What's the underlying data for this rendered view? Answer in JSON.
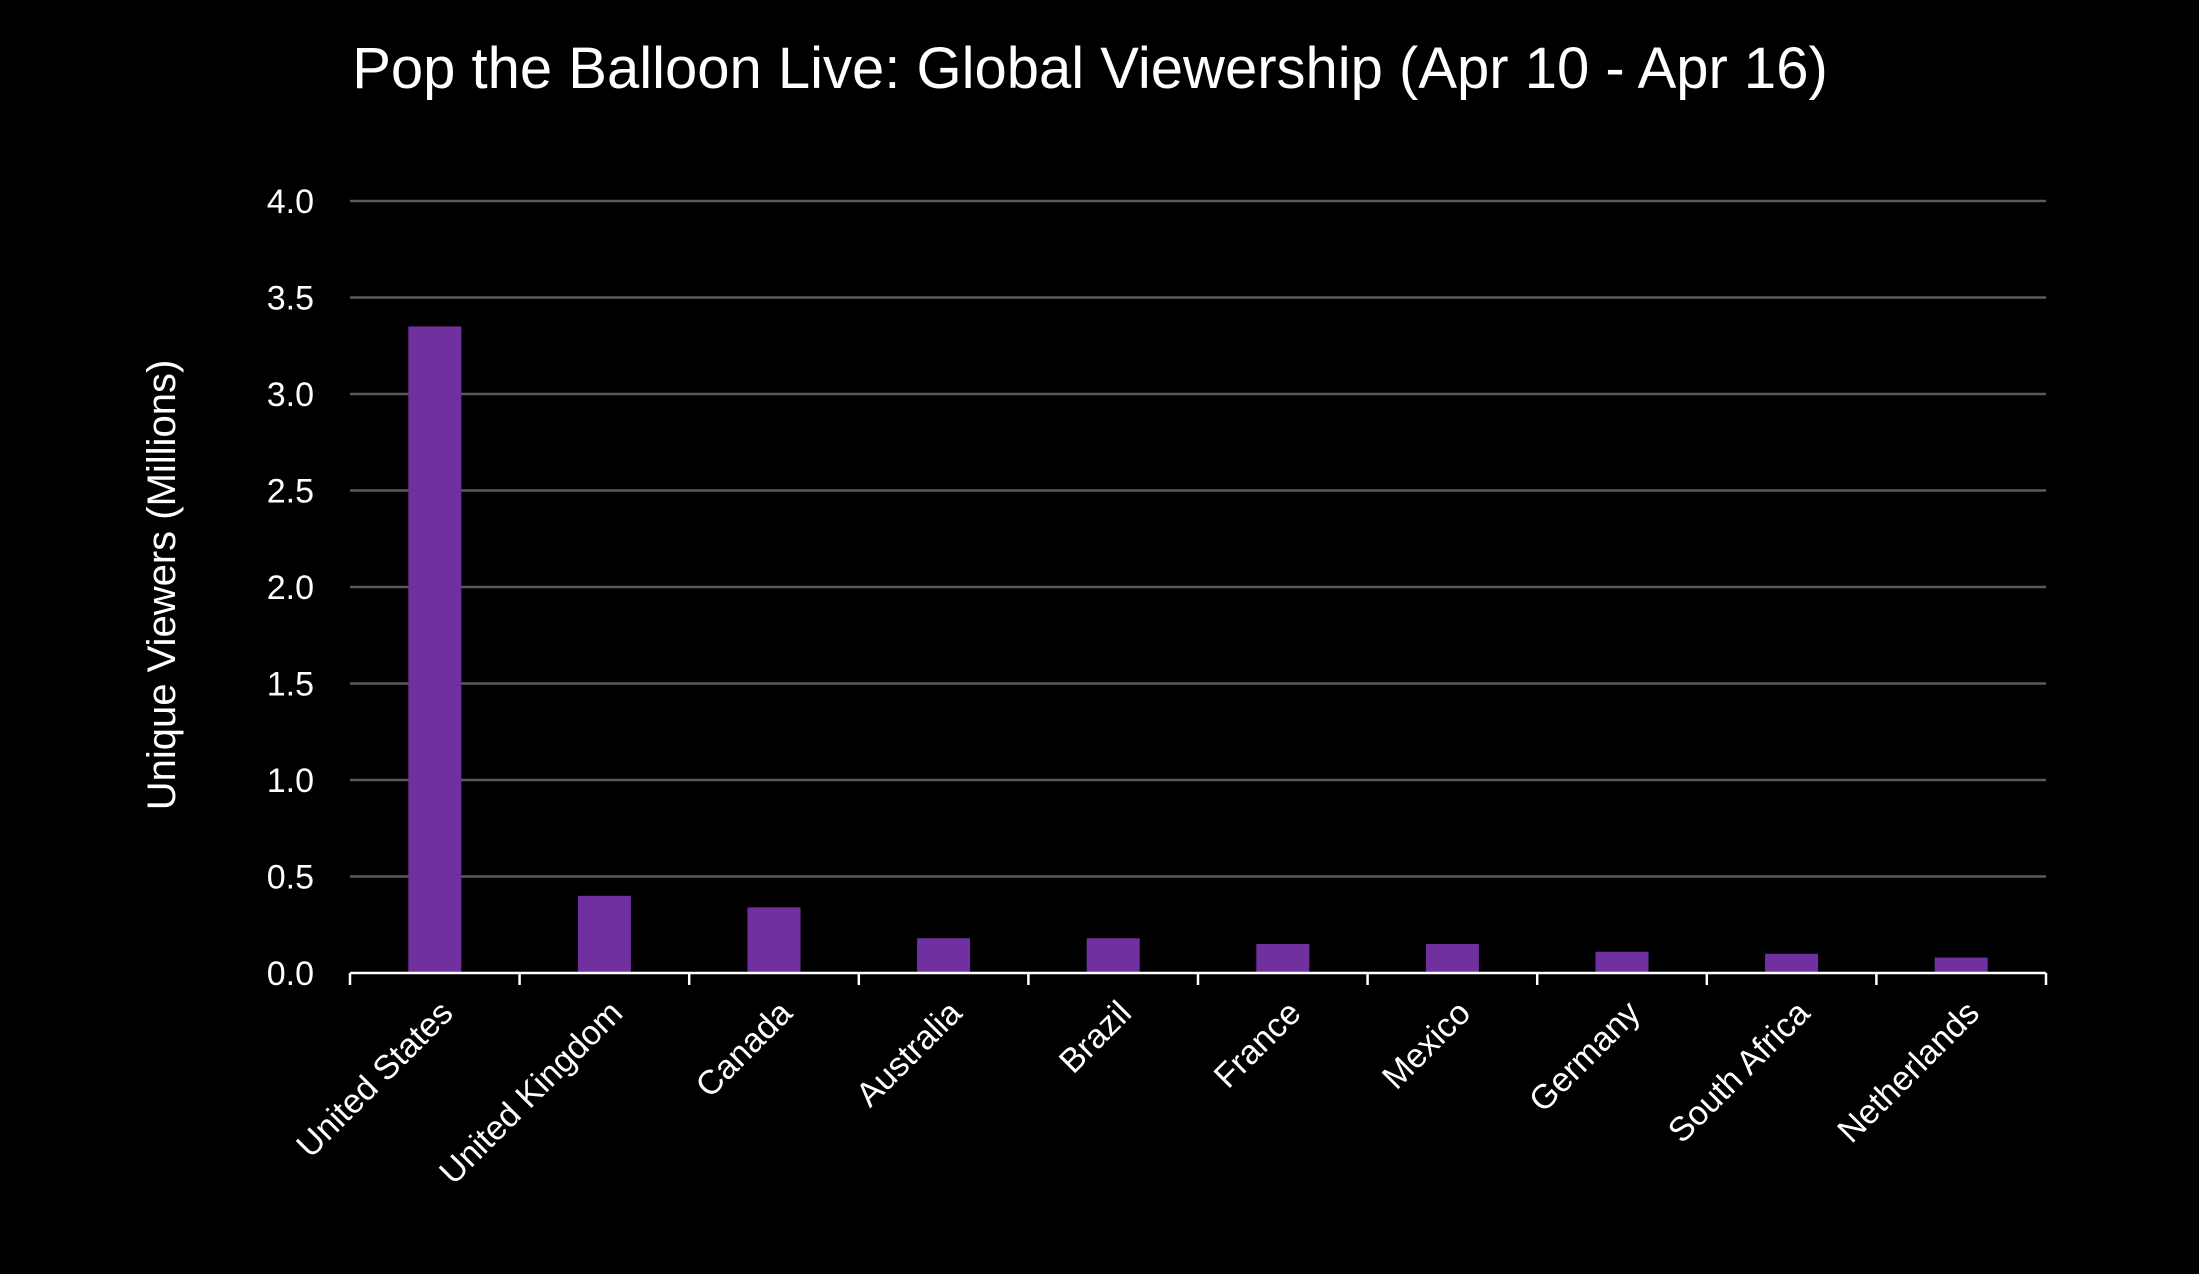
{
  "chart_data": {
    "type": "bar",
    "title": "Pop the Balloon Live: Global Viewership (Apr 10 - Apr 16)",
    "xlabel": "",
    "ylabel": "Unique Viewers (Millions)",
    "categories": [
      "United States",
      "United Kingdom",
      "Canada",
      "Australia",
      "Brazil",
      "France",
      "Mexico",
      "Germany",
      "South Africa",
      "Netherlands"
    ],
    "values": [
      3.35,
      0.4,
      0.34,
      0.18,
      0.18,
      0.15,
      0.15,
      0.11,
      0.1,
      0.08
    ],
    "ylim": [
      0,
      4.0
    ],
    "yticks": [
      "0.0",
      "0.5",
      "1.0",
      "1.5",
      "2.0",
      "2.5",
      "3.0",
      "3.5",
      "4.0"
    ],
    "grid": true,
    "legend": "none",
    "bar_color": "#7030a0",
    "background_color": "#000000"
  }
}
